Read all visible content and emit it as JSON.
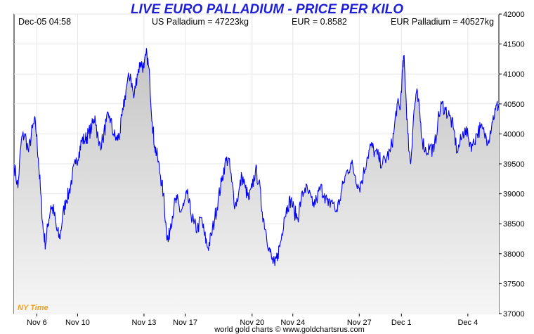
{
  "chart_data": {
    "type": "line",
    "title": "LIVE EURO PALLADIUM - PRICE PER KILO",
    "header": {
      "timestamp": "Dec-05  04:58",
      "us_price": "US Palladium = 47223kg",
      "eur_rate": "EUR = 0.8582",
      "eur_price": "EUR Palladium = 40527kg"
    },
    "time_zone_label": "NY Time",
    "footer": "world gold charts © www.goldchartsrus.com",
    "ylim": [
      37000,
      42000
    ],
    "y_ticks": [
      37000,
      37500,
      38000,
      38500,
      39000,
      39500,
      40000,
      40500,
      41000,
      41500,
      42000
    ],
    "x_ticks": [
      {
        "label": "Nov 6",
        "pos": 0.047
      },
      {
        "label": "Nov 10",
        "pos": 0.131
      },
      {
        "label": "Nov 13",
        "pos": 0.268
      },
      {
        "label": "Nov 17",
        "pos": 0.353
      },
      {
        "label": "Nov 20",
        "pos": 0.491
      },
      {
        "label": "Nov 24",
        "pos": 0.575
      },
      {
        "label": "Nov 27",
        "pos": 0.712
      },
      {
        "label": "Dec 1",
        "pos": 0.799
      },
      {
        "label": "Dec 4",
        "pos": 0.936
      }
    ],
    "series": [
      {
        "color": "#0000ff",
        "fill": "#d9d9d9",
        "points": [
          [
            0.0,
            39500
          ],
          [
            0.008,
            39100
          ],
          [
            0.015,
            39900
          ],
          [
            0.022,
            40000
          ],
          [
            0.03,
            39700
          ],
          [
            0.038,
            40100
          ],
          [
            0.044,
            40200
          ],
          [
            0.05,
            39600
          ],
          [
            0.055,
            39000
          ],
          [
            0.06,
            38400
          ],
          [
            0.065,
            38150
          ],
          [
            0.07,
            38500
          ],
          [
            0.076,
            38800
          ],
          [
            0.082,
            38700
          ],
          [
            0.088,
            38400
          ],
          [
            0.094,
            38250
          ],
          [
            0.1,
            38600
          ],
          [
            0.107,
            38900
          ],
          [
            0.113,
            39000
          ],
          [
            0.12,
            39300
          ],
          [
            0.127,
            39500
          ],
          [
            0.134,
            39700
          ],
          [
            0.14,
            39900
          ],
          [
            0.147,
            39900
          ],
          [
            0.153,
            40000
          ],
          [
            0.16,
            40100
          ],
          [
            0.167,
            40300
          ],
          [
            0.175,
            39800
          ],
          [
            0.183,
            39900
          ],
          [
            0.19,
            40200
          ],
          [
            0.197,
            40300
          ],
          [
            0.205,
            40000
          ],
          [
            0.212,
            39900
          ],
          [
            0.218,
            40000
          ],
          [
            0.225,
            40400
          ],
          [
            0.232,
            40800
          ],
          [
            0.24,
            41000
          ],
          [
            0.247,
            40600
          ],
          [
            0.254,
            41000
          ],
          [
            0.261,
            41200
          ],
          [
            0.268,
            41100
          ],
          [
            0.274,
            41350
          ],
          [
            0.28,
            40900
          ],
          [
            0.285,
            40200
          ],
          [
            0.29,
            39800
          ],
          [
            0.296,
            39600
          ],
          [
            0.302,
            39300
          ],
          [
            0.308,
            39000
          ],
          [
            0.314,
            38400
          ],
          [
            0.318,
            38200
          ],
          [
            0.323,
            38500
          ],
          [
            0.33,
            38800
          ],
          [
            0.336,
            38900
          ],
          [
            0.343,
            38700
          ],
          [
            0.35,
            38800
          ],
          [
            0.357,
            39000
          ],
          [
            0.364,
            38700
          ],
          [
            0.371,
            38500
          ],
          [
            0.378,
            38400
          ],
          [
            0.386,
            38600
          ],
          [
            0.393,
            38300
          ],
          [
            0.4,
            38100
          ],
          [
            0.407,
            38300
          ],
          [
            0.414,
            38600
          ],
          [
            0.421,
            38900
          ],
          [
            0.428,
            39200
          ],
          [
            0.435,
            39500
          ],
          [
            0.442,
            39600
          ],
          [
            0.449,
            39200
          ],
          [
            0.456,
            38800
          ],
          [
            0.463,
            39000
          ],
          [
            0.47,
            39300
          ],
          [
            0.477,
            39100
          ],
          [
            0.484,
            38900
          ],
          [
            0.491,
            39100
          ],
          [
            0.498,
            39400
          ],
          [
            0.505,
            39200
          ],
          [
            0.512,
            38700
          ],
          [
            0.519,
            38400
          ],
          [
            0.526,
            38100
          ],
          [
            0.532,
            37900
          ],
          [
            0.538,
            37800
          ],
          [
            0.544,
            38000
          ],
          [
            0.55,
            38200
          ],
          [
            0.557,
            38600
          ],
          [
            0.564,
            38800
          ],
          [
            0.571,
            38900
          ],
          [
            0.578,
            38700
          ],
          [
            0.585,
            38600
          ],
          [
            0.592,
            38900
          ],
          [
            0.6,
            39100
          ],
          [
            0.608,
            39000
          ],
          [
            0.616,
            38800
          ],
          [
            0.624,
            38900
          ],
          [
            0.632,
            39100
          ],
          [
            0.64,
            39000
          ],
          [
            0.648,
            38800
          ],
          [
            0.656,
            38900
          ],
          [
            0.664,
            38700
          ],
          [
            0.672,
            38900
          ],
          [
            0.68,
            39200
          ],
          [
            0.688,
            39400
          ],
          [
            0.696,
            39500
          ],
          [
            0.704,
            39300
          ],
          [
            0.712,
            39100
          ],
          [
            0.72,
            39300
          ],
          [
            0.728,
            39600
          ],
          [
            0.736,
            39800
          ],
          [
            0.744,
            39700
          ],
          [
            0.752,
            39600
          ],
          [
            0.76,
            39500
          ],
          [
            0.768,
            39600
          ],
          [
            0.776,
            39700
          ],
          [
            0.783,
            40000
          ],
          [
            0.79,
            40500
          ],
          [
            0.796,
            40400
          ],
          [
            0.8,
            40900
          ],
          [
            0.804,
            41300
          ],
          [
            0.808,
            40700
          ],
          [
            0.812,
            40000
          ],
          [
            0.818,
            39500
          ],
          [
            0.824,
            40300
          ],
          [
            0.83,
            40700
          ],
          [
            0.836,
            40400
          ],
          [
            0.842,
            39900
          ],
          [
            0.85,
            39700
          ],
          [
            0.858,
            39800
          ],
          [
            0.866,
            39700
          ],
          [
            0.874,
            40200
          ],
          [
            0.882,
            40500
          ],
          [
            0.89,
            40400
          ],
          [
            0.898,
            40300
          ],
          [
            0.906,
            40100
          ],
          [
            0.914,
            39700
          ],
          [
            0.922,
            39900
          ],
          [
            0.93,
            40100
          ],
          [
            0.938,
            39900
          ],
          [
            0.946,
            39800
          ],
          [
            0.954,
            40000
          ],
          [
            0.962,
            40100
          ],
          [
            0.97,
            40000
          ],
          [
            0.978,
            39900
          ],
          [
            0.986,
            40200
          ],
          [
            0.993,
            40400
          ],
          [
            1.0,
            40500
          ]
        ]
      }
    ]
  }
}
